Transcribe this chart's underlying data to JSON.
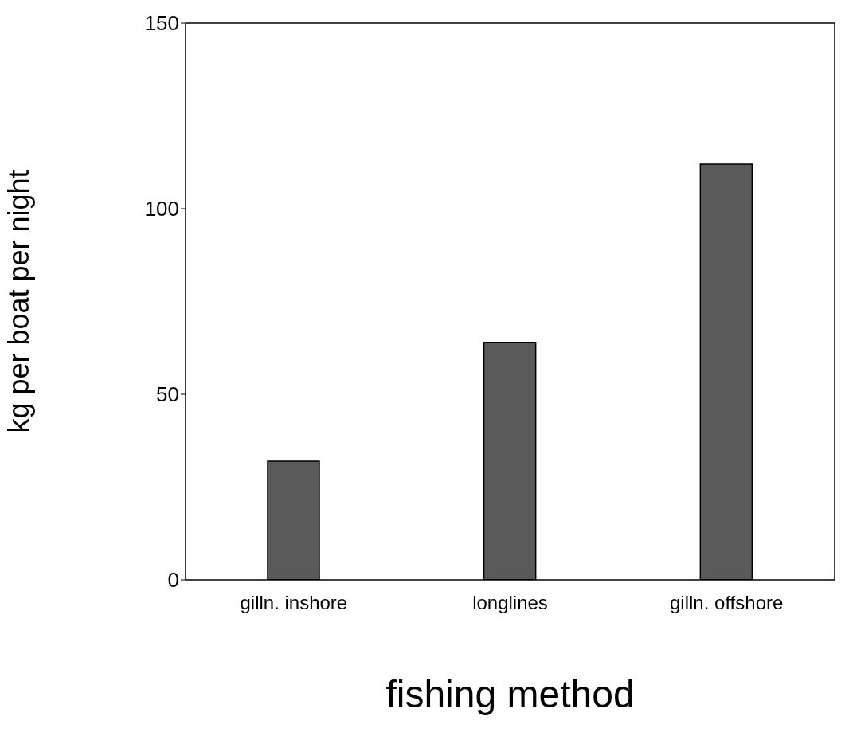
{
  "chart_data": {
    "type": "bar",
    "xlabel": "fishing method",
    "ylabel": "kg per boat per night",
    "categories": [
      "gilln. inshore",
      "longlines",
      "gilln. offshore"
    ],
    "values": [
      32,
      64,
      112
    ],
    "color": "#5a5a5a",
    "ylim": [
      0,
      150
    ],
    "yticks": [
      0,
      50,
      100,
      150
    ],
    "grid": false
  }
}
